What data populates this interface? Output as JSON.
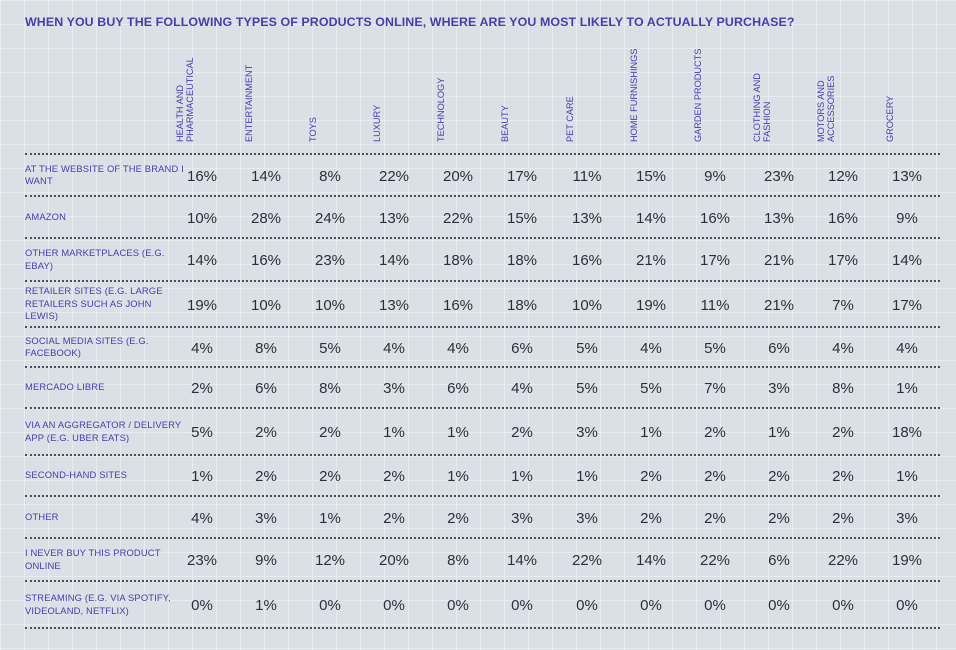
{
  "chart_data": {
    "type": "table",
    "title": "WHEN YOU BUY THE FOLLOWING TYPES OF PRODUCTS ONLINE, WHERE ARE YOU MOST LIKELY TO ACTUALLY PURCHASE?",
    "columns": [
      "HEALTH AND PHARMACEUTICAL",
      "ENTERTAINMENT",
      "TOYS",
      "LUXURY",
      "TECHNOLOGY",
      "BEAUTY",
      "PET CARE",
      "HOME FURNISHINGS",
      "GARDEN PRODUCTS",
      "CLOTHING AND FASHION",
      "MOTORS AND ACCESSORIES",
      "GROCERY"
    ],
    "rows": [
      {
        "label": "AT THE WEBSITE OF THE BRAND I WANT",
        "values": [
          "16%",
          "14%",
          "8%",
          "22%",
          "20%",
          "17%",
          "11%",
          "15%",
          "9%",
          "23%",
          "12%",
          "13%"
        ]
      },
      {
        "label": "AMAZON",
        "values": [
          "10%",
          "28%",
          "24%",
          "13%",
          "22%",
          "15%",
          "13%",
          "14%",
          "16%",
          "13%",
          "16%",
          "9%"
        ]
      },
      {
        "label": "OTHER MARKETPLACES (E.G. EBAY)",
        "values": [
          "14%",
          "16%",
          "23%",
          "14%",
          "18%",
          "18%",
          "16%",
          "21%",
          "17%",
          "21%",
          "17%",
          "14%"
        ]
      },
      {
        "label": "RETAILER SITES (E.G. LARGE RETAILERS SUCH AS JOHN LEWIS)",
        "values": [
          "19%",
          "10%",
          "10%",
          "13%",
          "16%",
          "18%",
          "10%",
          "19%",
          "11%",
          "21%",
          "7%",
          "17%"
        ]
      },
      {
        "label": "SOCIAL MEDIA SITES (E.G. FACEBOOK)",
        "values": [
          "4%",
          "8%",
          "5%",
          "4%",
          "4%",
          "6%",
          "5%",
          "4%",
          "5%",
          "6%",
          "4%",
          "4%"
        ]
      },
      {
        "label": "MERCADO LIBRE",
        "values": [
          "2%",
          "6%",
          "8%",
          "3%",
          "6%",
          "4%",
          "5%",
          "5%",
          "7%",
          "3%",
          "8%",
          "1%"
        ]
      },
      {
        "label": "VIA AN AGGREGATOR / DELIVERY APP (E.G. UBER EATS)",
        "values": [
          "5%",
          "2%",
          "2%",
          "1%",
          "1%",
          "2%",
          "3%",
          "1%",
          "2%",
          "1%",
          "2%",
          "18%"
        ]
      },
      {
        "label": "SECOND-HAND SITES",
        "values": [
          "1%",
          "2%",
          "2%",
          "2%",
          "1%",
          "1%",
          "1%",
          "2%",
          "2%",
          "2%",
          "2%",
          "1%"
        ]
      },
      {
        "label": "OTHER",
        "values": [
          "4%",
          "3%",
          "1%",
          "2%",
          "2%",
          "3%",
          "3%",
          "2%",
          "2%",
          "2%",
          "2%",
          "3%"
        ]
      },
      {
        "label": "I NEVER BUY THIS PRODUCT ONLINE",
        "values": [
          "23%",
          "9%",
          "12%",
          "20%",
          "8%",
          "14%",
          "22%",
          "14%",
          "22%",
          "6%",
          "22%",
          "19%"
        ]
      },
      {
        "label": "STREAMING (E.G. VIA SPOTIFY, VIDEOLAND, NETFLIX)",
        "values": [
          "0%",
          "1%",
          "0%",
          "0%",
          "0%",
          "0%",
          "0%",
          "0%",
          "0%",
          "0%",
          "0%",
          "0%"
        ]
      }
    ],
    "colors": {
      "label": "#4a3ba8",
      "value": "#2b2f3a",
      "background": "#d9e1e6"
    }
  }
}
